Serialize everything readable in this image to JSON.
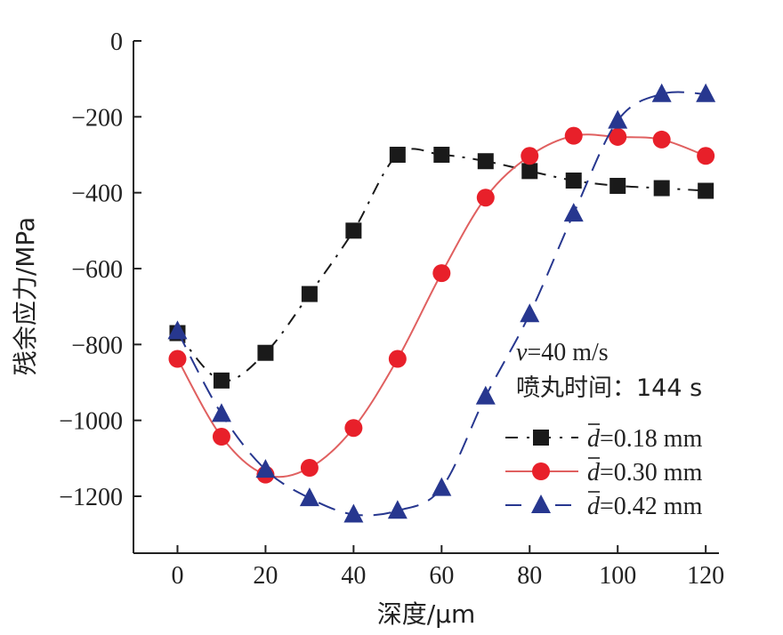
{
  "chart_data": {
    "type": "line",
    "xlabel": "深度/μm",
    "ylabel": "残余应力/MPa",
    "xlim": [
      -10,
      123
    ],
    "ylim": [
      -1350,
      0
    ],
    "xticks": [
      0,
      20,
      40,
      60,
      80,
      100,
      120
    ],
    "yticks": [
      0,
      -200,
      -400,
      -600,
      -800,
      -1000,
      -1200
    ],
    "xtick_labels": [
      "0",
      "20",
      "40",
      "60",
      "80",
      "100",
      "120"
    ],
    "ytick_labels": [
      "0",
      "−200",
      "−400",
      "−600",
      "−800",
      "−1000",
      "−1200"
    ],
    "grid": false,
    "legend_position": "right",
    "annotation": {
      "v_symbol": "v",
      "v_rest": "=40 m/s",
      "time": "喷丸时间：144 s"
    },
    "series": [
      {
        "name": "d̄=0.18 mm",
        "legend_symbol": "d",
        "legend_rest": "=0.18 mm",
        "marker": "square",
        "line_style": "dash-dot",
        "color": "#1a1a1a",
        "x": [
          0,
          10,
          20,
          30,
          40,
          50,
          60,
          70,
          80,
          90,
          100,
          110,
          120
        ],
        "y": [
          -770,
          -895,
          -822,
          -667,
          -500,
          -300,
          -300,
          -317,
          -343,
          -368,
          -382,
          -388,
          -395
        ]
      },
      {
        "name": "d̄=0.30 mm",
        "legend_symbol": "d",
        "legend_rest": "=0.30 mm",
        "marker": "circle",
        "line_style": "solid",
        "color": "#e8202a",
        "line_color": "#e06060",
        "x": [
          0,
          10,
          20,
          30,
          40,
          50,
          60,
          70,
          80,
          90,
          100,
          110,
          120
        ],
        "y": [
          -838,
          -1043,
          -1143,
          -1125,
          -1020,
          -838,
          -612,
          -413,
          -303,
          -250,
          -253,
          -260,
          -303
        ]
      },
      {
        "name": "d̄=0.42 mm",
        "legend_symbol": "d",
        "legend_rest": "=0.42 mm",
        "marker": "triangle",
        "line_style": "dashed",
        "color": "#27378f",
        "x": [
          0,
          10,
          20,
          30,
          40,
          50,
          60,
          70,
          80,
          90,
          100,
          110,
          120
        ],
        "y": [
          -765,
          -983,
          -1130,
          -1205,
          -1248,
          -1238,
          -1178,
          -937,
          -720,
          -455,
          -210,
          -140,
          -140
        ]
      }
    ]
  }
}
